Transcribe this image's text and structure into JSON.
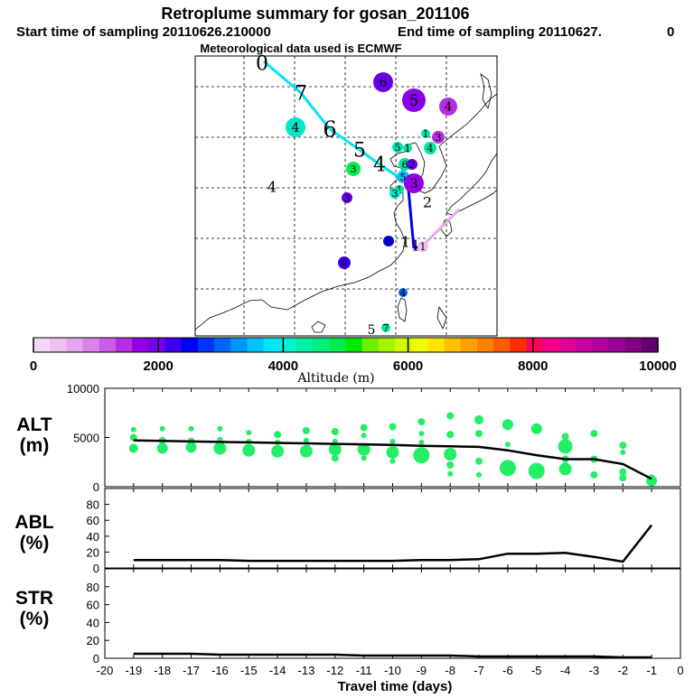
{
  "header": {
    "title": "Retroplume summary for gosan_201106",
    "start_label": "Start time of sampling 20110626.210000",
    "end_label": "End time of sampling 20110627.",
    "end_suffix": "0",
    "met_label": "Meteorological data used is ECMWF"
  },
  "colorbar": {
    "title": "Altitude (m)",
    "ticks": [
      "0",
      "2000",
      "4000",
      "6000",
      "8000",
      "10000"
    ],
    "colors": [
      "#f6d6f6",
      "#f0c0f0",
      "#e6a6ee",
      "#da84ea",
      "#cc5ce6",
      "#b42ee2",
      "#9400e6",
      "#7800ea",
      "#3c00ee",
      "#0000f2",
      "#0034f6",
      "#0066fa",
      "#0096fc",
      "#00c2fc",
      "#00e6f6",
      "#00f2d0",
      "#00f0a6",
      "#00ee7c",
      "#00ec50",
      "#00ea00",
      "#70f000",
      "#a6f400",
      "#d0f800",
      "#f0fc00",
      "#ffe400",
      "#ffc000",
      "#ffa000",
      "#ff8000",
      "#ff5a00",
      "#ff2c00",
      "#ff0060",
      "#f2008c",
      "#de0098",
      "#c800a0",
      "#b000a0",
      "#9a0096",
      "#800084",
      "#620070"
    ]
  },
  "map": {
    "labels": [
      {
        "t": "0",
        "x": 290,
        "y": 70,
        "s": 22
      },
      {
        "t": "7",
        "x": 333,
        "y": 103,
        "s": 22
      },
      {
        "t": "6",
        "x": 365,
        "y": 143,
        "s": 24
      },
      {
        "t": "5",
        "x": 398,
        "y": 166,
        "s": 22
      },
      {
        "t": "4",
        "x": 420,
        "y": 182,
        "s": 22
      },
      {
        "t": "4",
        "x": 301,
        "y": 207,
        "s": 16
      },
      {
        "t": "2",
        "x": 473,
        "y": 224,
        "s": 16
      },
      {
        "t": "1",
        "x": 460,
        "y": 272,
        "s": 16
      },
      {
        "t": "1",
        "x": 449,
        "y": 268,
        "s": 16
      },
      {
        "t": "5",
        "x": 411,
        "y": 365,
        "s": 14
      }
    ],
    "path": [
      [
        292,
        68
      ],
      [
        333,
        103
      ],
      [
        365,
        143
      ],
      [
        398,
        166
      ],
      [
        420,
        182
      ],
      [
        447,
        200
      ],
      [
        452,
        210
      ],
      [
        458,
        275
      ],
      [
        468,
        272
      ],
      [
        508,
        232
      ]
    ],
    "dots": [
      {
        "t": "6",
        "x": 424,
        "y": 91,
        "r": 11,
        "c": "#6a00ea"
      },
      {
        "t": "5",
        "x": 458,
        "y": 111,
        "r": 13,
        "c": "#8a00e8"
      },
      {
        "t": "4",
        "x": 496,
        "y": 118,
        "r": 10,
        "c": "#b42ee2"
      },
      {
        "t": "4",
        "x": 327,
        "y": 141,
        "r": 11,
        "c": "#00e6c8"
      },
      {
        "t": "3",
        "x": 485,
        "y": 152,
        "r": 7,
        "c": "#b42ee2"
      },
      {
        "t": "1",
        "x": 471,
        "y": 148,
        "r": 5,
        "c": "#00e6a0"
      },
      {
        "t": "4",
        "x": 476,
        "y": 164,
        "r": 7,
        "c": "#00e6a0"
      },
      {
        "t": "5",
        "x": 440,
        "y": 163,
        "r": 6,
        "c": "#00e6b4"
      },
      {
        "t": "1",
        "x": 451,
        "y": 164,
        "r": 5,
        "c": "#00e6a0"
      },
      {
        "t": "6",
        "x": 448,
        "y": 182,
        "r": 7,
        "c": "#00e6a0"
      },
      {
        "t": "2",
        "x": 456,
        "y": 182,
        "r": 6,
        "c": "#6a00ea"
      },
      {
        "t": "3",
        "x": 391,
        "y": 187,
        "r": 8,
        "c": "#00ea50"
      },
      {
        "t": "5",
        "x": 446,
        "y": 196,
        "r": 7,
        "c": "#00c2fc"
      },
      {
        "t": "3",
        "x": 458,
        "y": 203,
        "r": 11,
        "c": "#9400e6"
      },
      {
        "t": "1",
        "x": 442,
        "y": 210,
        "r": 5,
        "c": "#00e6a0"
      },
      {
        "t": "3",
        "x": 437,
        "y": 214,
        "r": 6,
        "c": "#00e6c8"
      },
      {
        "t": "3",
        "x": 384,
        "y": 219,
        "r": 6,
        "c": "#6a00ea"
      },
      {
        "t": "0",
        "x": 430,
        "y": 267,
        "r": 6,
        "c": "#0000f2"
      },
      {
        "t": "0",
        "x": 381,
        "y": 291,
        "r": 7,
        "c": "#3c00ee"
      },
      {
        "t": "1",
        "x": 468,
        "y": 273,
        "r": 6,
        "c": "#f0c0f0"
      },
      {
        "t": "4",
        "x": 446,
        "y": 324,
        "r": 5,
        "c": "#0066fa"
      },
      {
        "t": "7",
        "x": 427,
        "y": 363,
        "r": 5,
        "c": "#00e6a0"
      }
    ]
  },
  "chart_data": [
    {
      "type": "scatter",
      "name": "ALT",
      "title": "ALT",
      "ylabel": "(m)",
      "xlabel": "Travel time (days)",
      "xlim": [
        -20,
        0
      ],
      "ylim": [
        0,
        10000
      ],
      "y_ticks": [
        "10000",
        "5000",
        "0"
      ],
      "median_line": {
        "x": [
          -19,
          -18,
          -17,
          -16,
          -15,
          -14,
          -13,
          -12,
          -11,
          -10,
          -9,
          -8,
          -7,
          -6,
          -5,
          -4,
          -3,
          -2,
          -1
        ],
        "y": [
          4700,
          4650,
          4600,
          4550,
          4500,
          4450,
          4400,
          4350,
          4300,
          4250,
          4150,
          4100,
          4050,
          3700,
          3200,
          2800,
          2800,
          2300,
          800
        ]
      },
      "points": [
        {
          "x": -19,
          "y": 5800,
          "s": 3
        },
        {
          "x": -19,
          "y": 5000,
          "s": 4
        },
        {
          "x": -19,
          "y": 3900,
          "s": 5
        },
        {
          "x": -18,
          "y": 5900,
          "s": 3
        },
        {
          "x": -18,
          "y": 4700,
          "s": 4
        },
        {
          "x": -18,
          "y": 3900,
          "s": 6
        },
        {
          "x": -17,
          "y": 5900,
          "s": 3
        },
        {
          "x": -17,
          "y": 4600,
          "s": 4
        },
        {
          "x": -17,
          "y": 4000,
          "s": 6
        },
        {
          "x": -16,
          "y": 5900,
          "s": 3
        },
        {
          "x": -16,
          "y": 4800,
          "s": 3
        },
        {
          "x": -16,
          "y": 3900,
          "s": 7
        },
        {
          "x": -15,
          "y": 5500,
          "s": 3
        },
        {
          "x": -15,
          "y": 4600,
          "s": 3
        },
        {
          "x": -15,
          "y": 3700,
          "s": 7
        },
        {
          "x": -14,
          "y": 5300,
          "s": 4
        },
        {
          "x": -14,
          "y": 4500,
          "s": 3
        },
        {
          "x": -14,
          "y": 3600,
          "s": 7
        },
        {
          "x": -13,
          "y": 5700,
          "s": 4
        },
        {
          "x": -13,
          "y": 4700,
          "s": 3
        },
        {
          "x": -13,
          "y": 3600,
          "s": 7
        },
        {
          "x": -12,
          "y": 5600,
          "s": 4
        },
        {
          "x": -12,
          "y": 4600,
          "s": 3
        },
        {
          "x": -12,
          "y": 3800,
          "s": 7
        },
        {
          "x": -12,
          "y": 2900,
          "s": 4
        },
        {
          "x": -11,
          "y": 6000,
          "s": 4
        },
        {
          "x": -11,
          "y": 5200,
          "s": 3
        },
        {
          "x": -11,
          "y": 3800,
          "s": 7
        },
        {
          "x": -11,
          "y": 2900,
          "s": 3
        },
        {
          "x": -10,
          "y": 6100,
          "s": 4
        },
        {
          "x": -10,
          "y": 4600,
          "s": 3
        },
        {
          "x": -10,
          "y": 3500,
          "s": 7
        },
        {
          "x": -10,
          "y": 2600,
          "s": 3
        },
        {
          "x": -9,
          "y": 6600,
          "s": 4
        },
        {
          "x": -9,
          "y": 5400,
          "s": 3
        },
        {
          "x": -9,
          "y": 3200,
          "s": 9
        },
        {
          "x": -9,
          "y": 4500,
          "s": 3
        },
        {
          "x": -8,
          "y": 7200,
          "s": 4
        },
        {
          "x": -8,
          "y": 5300,
          "s": 4
        },
        {
          "x": -8,
          "y": 3300,
          "s": 7
        },
        {
          "x": -8,
          "y": 2200,
          "s": 4
        },
        {
          "x": -8,
          "y": 1300,
          "s": 3
        },
        {
          "x": -7,
          "y": 6800,
          "s": 5
        },
        {
          "x": -7,
          "y": 5400,
          "s": 4
        },
        {
          "x": -7,
          "y": 2600,
          "s": 4
        },
        {
          "x": -7,
          "y": 1200,
          "s": 3
        },
        {
          "x": -6,
          "y": 6300,
          "s": 6
        },
        {
          "x": -6,
          "y": 4300,
          "s": 3
        },
        {
          "x": -6,
          "y": 1900,
          "s": 9
        },
        {
          "x": -5,
          "y": 5900,
          "s": 6
        },
        {
          "x": -5,
          "y": 1600,
          "s": 9
        },
        {
          "x": -4,
          "y": 5100,
          "s": 4
        },
        {
          "x": -4,
          "y": 4100,
          "s": 8
        },
        {
          "x": -4,
          "y": 2800,
          "s": 4
        },
        {
          "x": -4,
          "y": 1800,
          "s": 7
        },
        {
          "x": -3,
          "y": 5400,
          "s": 4
        },
        {
          "x": -3,
          "y": 2800,
          "s": 4
        },
        {
          "x": -3,
          "y": 1200,
          "s": 4
        },
        {
          "x": -2,
          "y": 4200,
          "s": 4
        },
        {
          "x": -2,
          "y": 3500,
          "s": 3
        },
        {
          "x": -2,
          "y": 1500,
          "s": 4
        },
        {
          "x": -2,
          "y": 900,
          "s": 4
        },
        {
          "x": -1,
          "y": 1000,
          "s": 3
        },
        {
          "x": -1,
          "y": 600,
          "s": 6
        }
      ]
    },
    {
      "type": "line",
      "name": "ABL",
      "title": "ABL",
      "ylabel": "(%)",
      "xlim": [
        -20,
        0
      ],
      "ylim": [
        0,
        100
      ],
      "y_ticks": [
        "80",
        "60",
        "40",
        "20",
        "0"
      ],
      "x": [
        -19,
        -18,
        -17,
        -16,
        -15,
        -14,
        -13,
        -12,
        -11,
        -10,
        -9,
        -8,
        -7,
        -6,
        -5,
        -4,
        -3,
        -2,
        -1
      ],
      "y": [
        10,
        10,
        10,
        10,
        9,
        9,
        9,
        9,
        9,
        9,
        10,
        10,
        11,
        18,
        18,
        19,
        14,
        8,
        54
      ]
    },
    {
      "type": "line",
      "name": "STR",
      "title": "STR",
      "ylabel": "(%)",
      "xlabel": "Travel time (days)",
      "xlim": [
        -20,
        0
      ],
      "ylim": [
        0,
        100
      ],
      "y_ticks": [
        "80",
        "60",
        "40",
        "20",
        "0"
      ],
      "x_ticks": [
        "-20",
        "-19",
        "-18",
        "-17",
        "-16",
        "-15",
        "-14",
        "-13",
        "-12",
        "-11",
        "-10",
        "-9",
        "-8",
        "-7",
        "-6",
        "-5",
        "-4",
        "-3",
        "-2",
        "-1",
        "0"
      ],
      "x": [
        -19,
        -18,
        -17,
        -16,
        -15,
        -14,
        -13,
        -12,
        -11,
        -10,
        -9,
        -8,
        -7,
        -6,
        -5,
        -4,
        -3,
        -2,
        -1
      ],
      "y": [
        5,
        5,
        5,
        4,
        4,
        4,
        4,
        4,
        3,
        3,
        3,
        3,
        2,
        2,
        2,
        2,
        2,
        1,
        1
      ]
    }
  ]
}
